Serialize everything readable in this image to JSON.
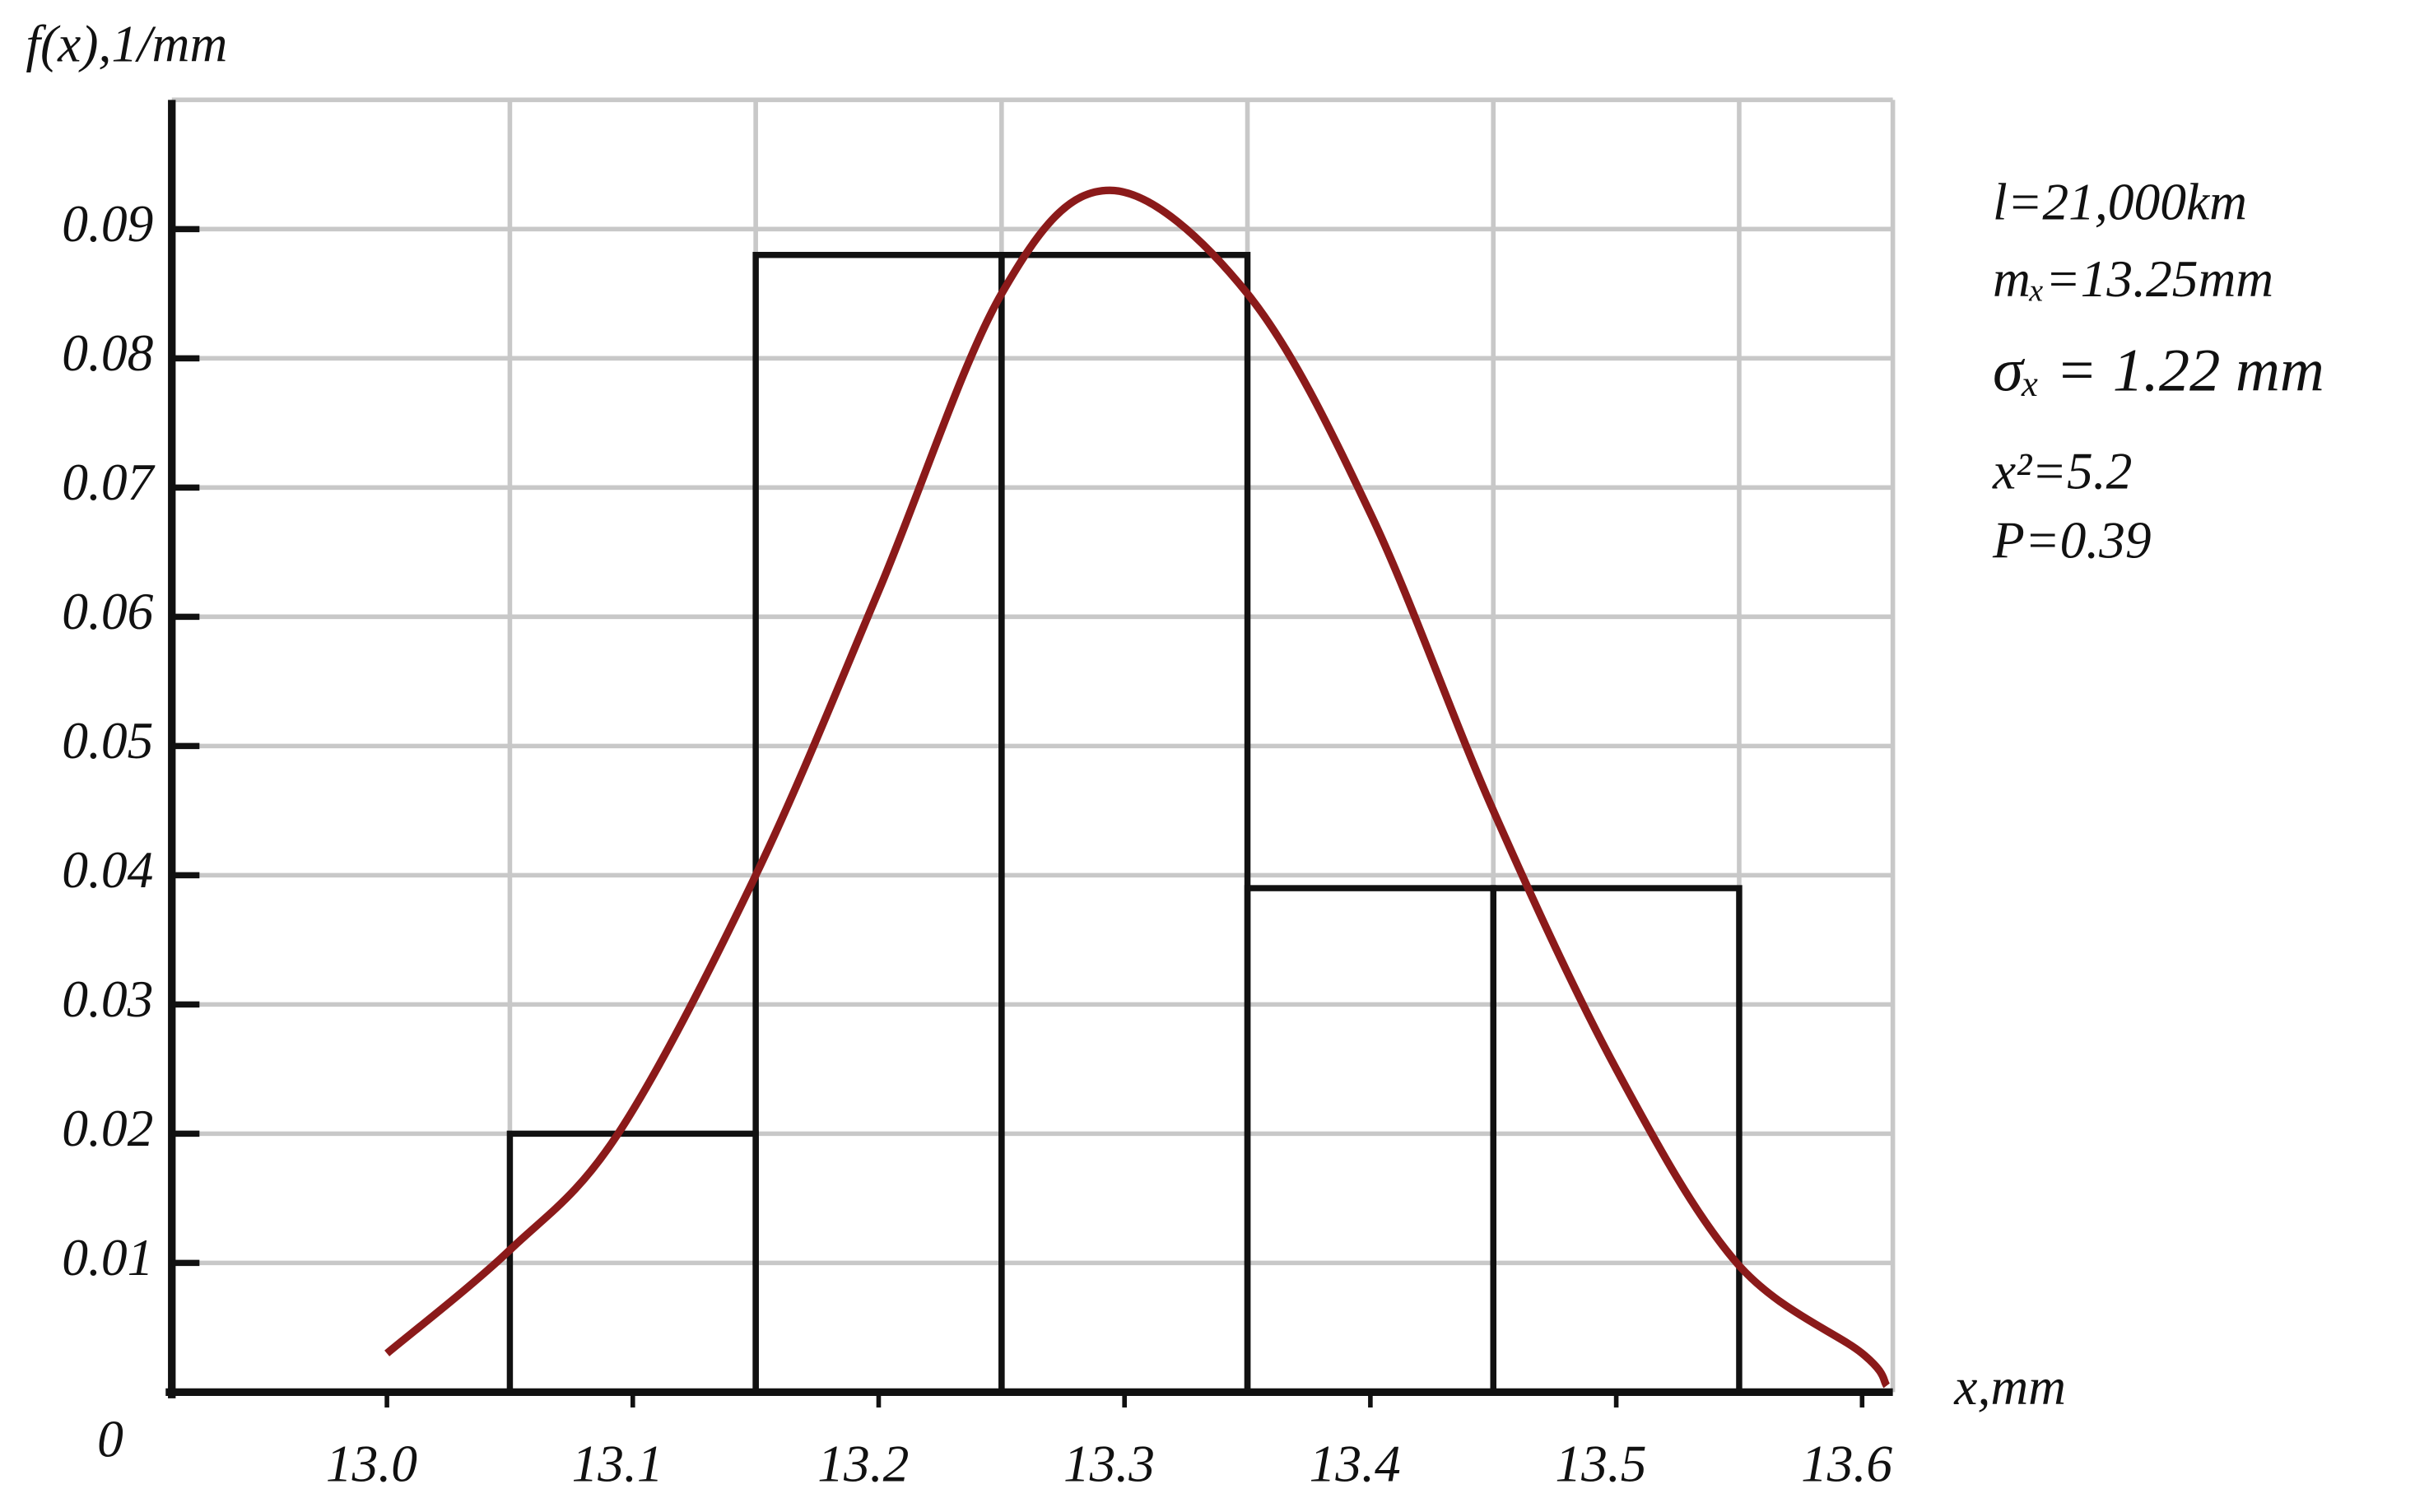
{
  "chart_data": {
    "type": "histogram",
    "ylabel": "f(x),1/mm",
    "xlabel": "x,mm",
    "bins": [
      13.05,
      13.15,
      13.25,
      13.35,
      13.45,
      13.55
    ],
    "values": [
      0.02,
      0.088,
      0.088,
      0.039,
      0.039
    ],
    "color": "#111111",
    "curve": {
      "color": "#8b1a1a",
      "x": [
        13.0,
        13.05,
        13.094,
        13.15,
        13.2,
        13.25,
        13.294,
        13.35,
        13.4,
        13.45,
        13.5,
        13.549,
        13.6,
        13.61
      ],
      "values": [
        0.003,
        0.011,
        0.02,
        0.04,
        0.062,
        0.085,
        0.093,
        0.085,
        0.068,
        0.045,
        0.025,
        0.01,
        0.003,
        0.0005
      ]
    },
    "xlim": [
      12.9125,
      13.6125
    ],
    "ylim": [
      0,
      0.1
    ],
    "xticks": [
      {
        "value": 13,
        "label": "13.0"
      },
      13.1,
      13.2,
      13.3,
      13.4,
      13.5,
      13.6
    ],
    "yticks": [
      0,
      0.01,
      0.02,
      0.03,
      0.04,
      0.05,
      0.06,
      0.07,
      0.08,
      0.09
    ],
    "grid": true,
    "annotations": [
      "l=21,000km",
      "mₓ=13.25mm",
      "σₓ = 1.22 mm",
      "x²=5.2",
      "P=0.39"
    ]
  }
}
